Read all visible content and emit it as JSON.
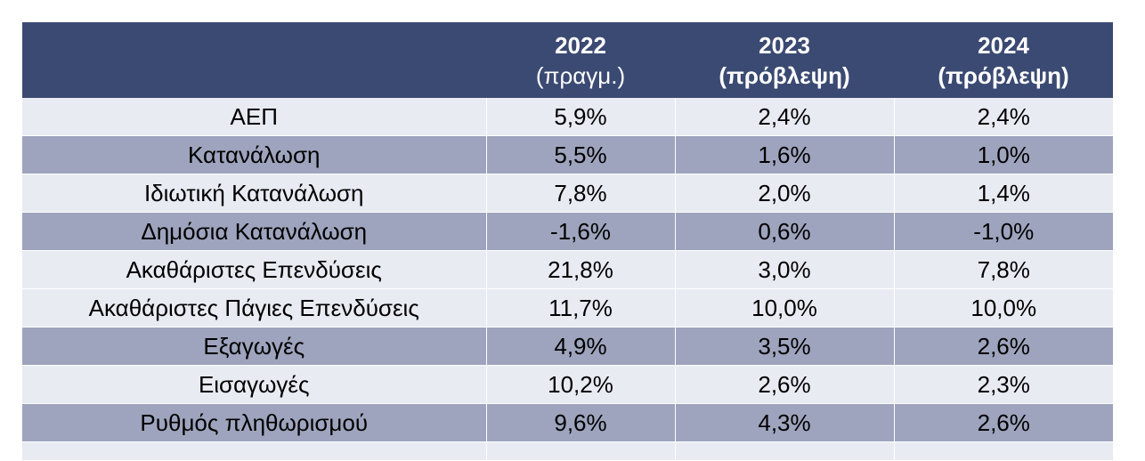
{
  "table": {
    "headers": [
      {
        "year": "",
        "note": ""
      },
      {
        "year": "2022",
        "note": "(πραγμ.)"
      },
      {
        "year": "2023",
        "note": "(πρόβλεψη)"
      },
      {
        "year": "2024",
        "note": "(πρόβλεψη)"
      }
    ],
    "rows": [
      {
        "label": "ΑΕΠ",
        "v2022": "5,9%",
        "v2023": "2,4%",
        "v2024": "2,4%"
      },
      {
        "label": "Κατανάλωση",
        "v2022": "5,5%",
        "v2023": "1,6%",
        "v2024": "1,0%"
      },
      {
        "label": "Ιδιωτική Κατανάλωση",
        "v2022": "7,8%",
        "v2023": "2,0%",
        "v2024": "1,4%"
      },
      {
        "label": "Δημόσια Κατανάλωση",
        "v2022": "-1,6%",
        "v2023": "0,6%",
        "v2024": "-1,0%"
      },
      {
        "label": "Ακαθάριστες Επενδύσεις",
        "v2022": "21,8%",
        "v2023": "3,0%",
        "v2024": "7,8%"
      },
      {
        "label": "Ακαθάριστες Πάγιες Επενδύσεις",
        "v2022": "11,7%",
        "v2023": "10,0%",
        "v2024": "10,0%"
      },
      {
        "label": "Εξαγωγές",
        "v2022": "4,9%",
        "v2023": "3,5%",
        "v2024": "2,6%"
      },
      {
        "label": "Εισαγωγές",
        "v2022": "10,2%",
        "v2023": "2,6%",
        "v2024": "2,3%"
      },
      {
        "label": "Ρυθμός πληθωρισμού",
        "v2022": "9,6%",
        "v2023": "4,3%",
        "v2024": "2,6%"
      }
    ]
  },
  "colors": {
    "header_bg": "#3b4a72",
    "row_light": "#e9ebf3",
    "row_dark": "#9ea4bd"
  }
}
